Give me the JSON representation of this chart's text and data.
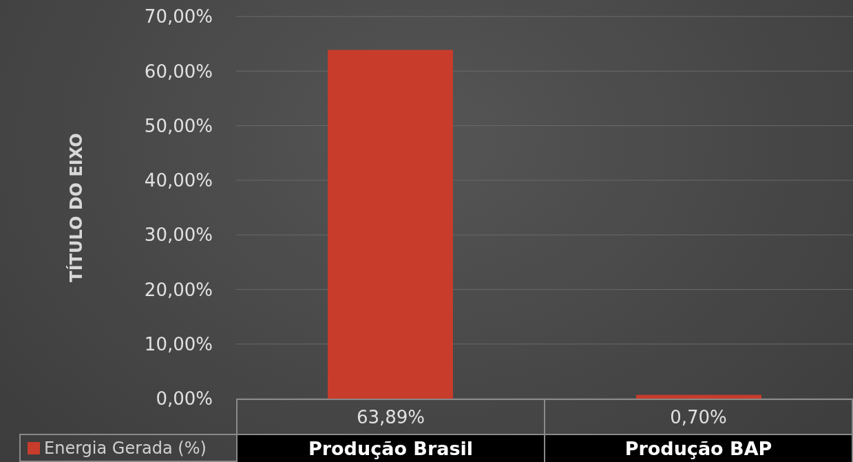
{
  "chart_data": {
    "type": "bar",
    "ylabel": "TÍTULO DO EIXO",
    "categories": [
      "Produção Brasil",
      "Produção BAP"
    ],
    "series": [
      {
        "name": "Energia Gerada (%)",
        "color": "#c83c2c",
        "values": [
          63.89,
          0.7
        ],
        "value_labels": [
          "63,89%",
          "0,70%"
        ]
      }
    ],
    "ylim": [
      0,
      70
    ],
    "yticks": [
      {
        "value": 0,
        "label": "0,00%"
      },
      {
        "value": 10,
        "label": "10,00%"
      },
      {
        "value": 20,
        "label": "20,00%"
      },
      {
        "value": 30,
        "label": "30,00%"
      },
      {
        "value": 40,
        "label": "40,00%"
      },
      {
        "value": 50,
        "label": "50,00%"
      },
      {
        "value": 60,
        "label": "60,00%"
      },
      {
        "value": 70,
        "label": "70,00%"
      }
    ],
    "grid": "y",
    "legend": "bottom left"
  }
}
